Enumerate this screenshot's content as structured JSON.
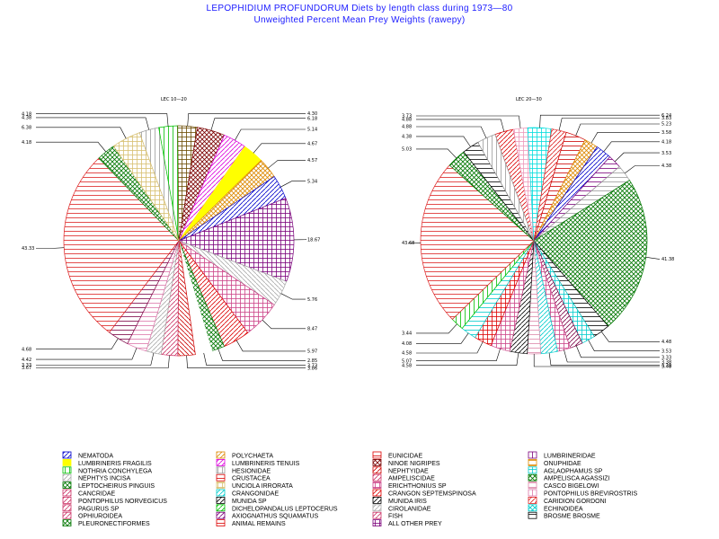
{
  "title": "LEPOPHIDIUM PROFUNDORUM Diets by length class during 1973—80",
  "subtitle": "Unweighted Percent Mean Prey Weights (rawepy)",
  "chart_data": [
    {
      "type": "pie",
      "title": "LEC 10—20",
      "slices": [
        {
          "label": "4.38",
          "value": 4.38,
          "fill": "vert",
          "color": "#9a9a9a"
        },
        {
          "label": "4.18",
          "value": 4.18,
          "fill": "vert",
          "color": "#00c000"
        },
        {
          "label": "4.30",
          "value": 4.3,
          "fill": "grid",
          "color": "#6a4a00"
        },
        {
          "label": "6.18",
          "value": 6.18,
          "fill": "cross",
          "color": "#7a0000"
        },
        {
          "label": "5.14",
          "value": 5.14,
          "fill": "diag",
          "color": "#dd00dd"
        },
        {
          "label": "4.67",
          "value": 4.67,
          "fill": "solid",
          "color": "#ffff00"
        },
        {
          "label": "4.57",
          "value": 4.57,
          "fill": "cross",
          "color": "#dd8800"
        },
        {
          "label": "5.34",
          "value": 5.34,
          "fill": "diag",
          "color": "#0000cc"
        },
        {
          "label": "18.67",
          "value": 18.67,
          "fill": "grid",
          "color": "#7a007a"
        },
        {
          "label": "5.76",
          "value": 5.76,
          "fill": "diag2",
          "color": "#aaaaaa"
        },
        {
          "label": "8.47",
          "value": 8.47,
          "fill": "grid",
          "color": "#cc4488"
        },
        {
          "label": "5.97",
          "value": 5.97,
          "fill": "diag",
          "color": "#dd0000"
        },
        {
          "label": "2.85",
          "value": 2.85,
          "fill": "cross",
          "color": "#007700"
        },
        {
          "label": "3.73",
          "value": 3.73,
          "fill": "diag",
          "color": "#ffffff"
        },
        {
          "label": "3.86",
          "value": 3.86,
          "fill": "diag2",
          "color": "#cc0000"
        },
        {
          "label": "3.67",
          "value": 3.67,
          "fill": "diag",
          "color": "#cc3366"
        },
        {
          "label": "3.33",
          "value": 3.33,
          "fill": "diag",
          "color": "#aaaaaa"
        },
        {
          "label": "4.42",
          "value": 4.42,
          "fill": "horiz",
          "color": "#dd77aa"
        },
        {
          "label": "4.68",
          "value": 4.68,
          "fill": "horiz",
          "color": "#7a0044"
        },
        {
          "label": "43.33",
          "value": 43.33,
          "fill": "horiz",
          "color": "#dd2222"
        },
        {
          "label": "4.18",
          "value": 4.18,
          "fill": "cross",
          "color": "#007700"
        },
        {
          "label": "6.38",
          "value": 6.38,
          "fill": "grid",
          "color": "#d8c070"
        }
      ]
    },
    {
      "type": "pie",
      "title": "LEC 20—30",
      "slices": [
        {
          "label": "4.88",
          "value": 4.88,
          "fill": "diag",
          "color": "#dd0000"
        },
        {
          "label": "3.73",
          "value": 3.73,
          "fill": "grid",
          "color": "#ee99bb"
        },
        {
          "label": "6.24",
          "value": 6.24,
          "fill": "grid",
          "color": "#00dddd"
        },
        {
          "label": "3.83",
          "value": 3.83,
          "fill": "diag",
          "color": "#dd2222"
        },
        {
          "label": "5.23",
          "value": 5.23,
          "fill": "horiz",
          "color": "#cc0000"
        },
        {
          "label": "3.58",
          "value": 3.58,
          "fill": "cross",
          "color": "#dd8800"
        },
        {
          "label": "4.18",
          "value": 4.18,
          "fill": "diag",
          "color": "#0000cc"
        },
        {
          "label": "3.53",
          "value": 3.53,
          "fill": "horiz",
          "color": "#7a007a"
        },
        {
          "label": "4.38",
          "value": 4.38,
          "fill": "horiz",
          "color": "#9a9a9a"
        },
        {
          "label": "41.38",
          "value": 41.38,
          "fill": "cross",
          "color": "#007700"
        },
        {
          "label": "4.48",
          "value": 4.48,
          "fill": "horiz",
          "color": "#000000"
        },
        {
          "label": "3.53",
          "value": 3.53,
          "fill": "grid",
          "color": "#00cccc"
        },
        {
          "label": "3.33",
          "value": 3.33,
          "fill": "diag",
          "color": "#7a0044"
        },
        {
          "label": "3.38",
          "value": 3.38,
          "fill": "grid",
          "color": "#cc4488"
        },
        {
          "label": "4.38",
          "value": 4.38,
          "fill": "diag",
          "color": "#00cccc"
        },
        {
          "label": "3.48",
          "value": 3.48,
          "fill": "horiz",
          "color": "#dd88aa"
        },
        {
          "label": "4.58",
          "value": 4.58,
          "fill": "diag",
          "color": "#000000"
        },
        {
          "label": "5.07",
          "value": 5.07,
          "fill": "grid",
          "color": "#cc4488"
        },
        {
          "label": "4.58",
          "value": 4.58,
          "fill": "grid",
          "color": "#dd0000"
        },
        {
          "label": "4.08",
          "value": 4.08,
          "fill": "horiz",
          "color": "#00cccc"
        },
        {
          "label": "3.44",
          "value": 3.44,
          "fill": "vert",
          "color": "#00c000"
        },
        {
          "label": "43.68",
          "value": 43.68,
          "fill": "horiz",
          "color": "#dd2222"
        },
        {
          "label": "5.03",
          "value": 5.03,
          "fill": "cross",
          "color": "#007700"
        },
        {
          "label": "4.38",
          "value": 4.38,
          "fill": "horiz",
          "color": "#000000"
        },
        {
          "label": "4.88",
          "value": 4.88,
          "fill": "vert",
          "color": "#9a9a9a"
        }
      ]
    }
  ],
  "legend": [
    {
      "label": "NEMATODA",
      "fill": "diag",
      "color": "#0000cc"
    },
    {
      "label": "POLYCHAETA",
      "fill": "diag",
      "color": "#dd8800"
    },
    {
      "label": "EUNICIDAE",
      "fill": "horiz",
      "color": "#dd0000"
    },
    {
      "label": "LUMBRINERIDAE",
      "fill": "vert",
      "color": "#7a007a"
    },
    {
      "label": "LUMBRINERIS FRAGILIS",
      "fill": "solid",
      "color": "#ffff00"
    },
    {
      "label": "LUMBRINERIS TENUIS",
      "fill": "diag",
      "color": "#dd00dd"
    },
    {
      "label": "NINOE NIGRIPES",
      "fill": "cross",
      "color": "#7a0000"
    },
    {
      "label": "ONUPHIDAE",
      "fill": "horiz",
      "color": "#dd8800"
    },
    {
      "label": "NOTHRIA CONCHYLEGA",
      "fill": "vert",
      "color": "#00c000"
    },
    {
      "label": "HESIONIDAE",
      "fill": "vert",
      "color": "#9a9a9a"
    },
    {
      "label": "NEPHTYIDAE",
      "fill": "diag",
      "color": "#cc0000"
    },
    {
      "label": "AGLAOPHAMUS SP",
      "fill": "grid",
      "color": "#00cccc"
    },
    {
      "label": "NEPHTYS INCISA",
      "fill": "diag",
      "color": "#aaaaaa"
    },
    {
      "label": "CRUSTACEA",
      "fill": "horiz",
      "color": "#dd0000"
    },
    {
      "label": "AMPELISCIDAE",
      "fill": "diag",
      "color": "#cc3366"
    },
    {
      "label": "AMPELISCA AGASSIZI",
      "fill": "cross",
      "color": "#007700"
    },
    {
      "label": "LEPTOCHEIRUS PINGUIS",
      "fill": "cross",
      "color": "#007700"
    },
    {
      "label": "UNCIOLA IRRORATA",
      "fill": "grid",
      "color": "#d8c070"
    },
    {
      "label": "ERICHTHONIUS SP",
      "fill": "grid",
      "color": "#cc4488"
    },
    {
      "label": "CASCO BIGELOWI",
      "fill": "horiz",
      "color": "#dd88aa"
    },
    {
      "label": "CANCRIDAE",
      "fill": "diag",
      "color": "#cc3366"
    },
    {
      "label": "CRANGONIDAE",
      "fill": "diag",
      "color": "#00cccc"
    },
    {
      "label": "CRANGON SEPTEMSPINOSA",
      "fill": "diag",
      "color": "#dd0000"
    },
    {
      "label": "PONTOPHILUS BREVIROSTRIS",
      "fill": "vert",
      "color": "#dd77aa"
    },
    {
      "label": "PONTOPHILUS NORVEGICUS",
      "fill": "diag",
      "color": "#cc3366"
    },
    {
      "label": "MUNIDA SP",
      "fill": "diag",
      "color": "#000000"
    },
    {
      "label": "MUNIDA IRIS",
      "fill": "diag",
      "color": "#000000"
    },
    {
      "label": "CARIDION GORDONI",
      "fill": "diag",
      "color": "#dd2222"
    },
    {
      "label": "PAGURUS SP",
      "fill": "diag",
      "color": "#cc3366"
    },
    {
      "label": "DICHELOPANDALUS LEPTOCERUS",
      "fill": "diag",
      "color": "#00c000"
    },
    {
      "label": "CIROLANIDAE",
      "fill": "diag",
      "color": "#aaaaaa"
    },
    {
      "label": "ECHINOIDEA",
      "fill": "cross",
      "color": "#00cccc"
    },
    {
      "label": "OPHIUROIDEA",
      "fill": "diag",
      "color": "#cc3366"
    },
    {
      "label": "AXIOGNATHUS SQUAMATUS",
      "fill": "diag",
      "color": "#7a007a"
    },
    {
      "label": "FISH",
      "fill": "diag",
      "color": "#cc3366"
    },
    {
      "label": "BROSME BROSME",
      "fill": "horiz",
      "color": "#000000"
    },
    {
      "label": "PLEURONECTIFORMES",
      "fill": "cross",
      "color": "#007700"
    },
    {
      "label": "ANIMAL REMAINS",
      "fill": "horiz",
      "color": "#dd0000"
    },
    {
      "label": "ALL OTHER PREY",
      "fill": "grid",
      "color": "#7a007a"
    }
  ]
}
